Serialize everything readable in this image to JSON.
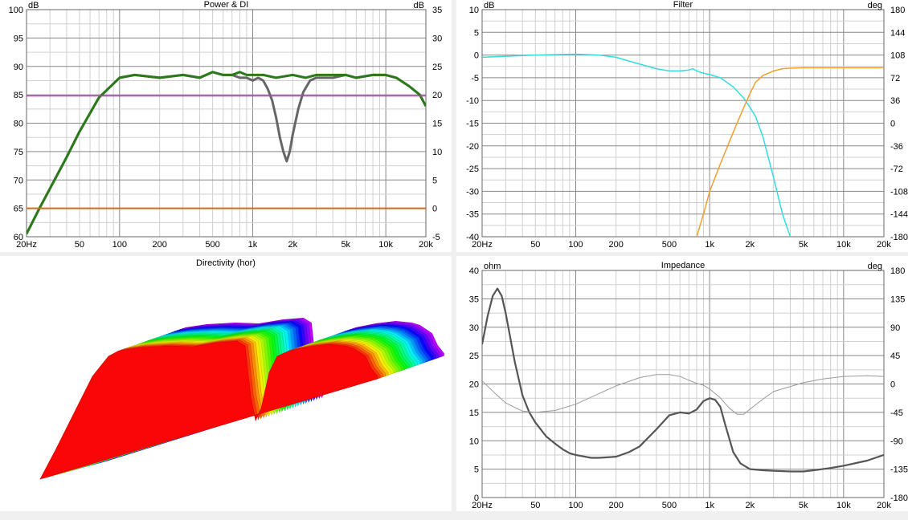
{
  "chart_data": [
    {
      "type": "line",
      "title": "Power & DI",
      "y_unit_left": "dB",
      "y_unit_right": "dB",
      "ylim_left": [
        60,
        100
      ],
      "ylim_right": [
        -5,
        35
      ],
      "xscale": "log",
      "xlim": [
        20,
        20000
      ],
      "x_ticks": [
        "20Hz",
        "50",
        "100",
        "200",
        "500",
        "1k",
        "2k",
        "5k",
        "10k",
        "20k"
      ],
      "y_ticks_left": [
        "60",
        "65",
        "70",
        "75",
        "80",
        "85",
        "90",
        "95",
        "100"
      ],
      "y_ticks_right": [
        "-5",
        "0",
        "5",
        "10",
        "15",
        "20",
        "25",
        "30",
        "35"
      ],
      "grid": true,
      "series": [
        {
          "color": "#666666",
          "x": [
            20,
            25,
            30,
            40,
            50,
            70,
            100,
            130,
            200,
            300,
            400,
            500,
            600,
            700,
            800,
            900,
            1000,
            1100,
            1200,
            1300,
            1400,
            1500,
            1600,
            1700,
            1800,
            1900,
            2000,
            2200,
            2400,
            2700,
            3000,
            3500,
            4000,
            5000,
            6000,
            8000,
            10000,
            12000,
            15000,
            18000,
            20000
          ],
          "y": [
            60.5,
            65,
            68.5,
            74,
            78.5,
            84.5,
            88,
            88.5,
            88,
            88.5,
            88,
            89,
            88.5,
            88.5,
            88,
            88,
            87.5,
            88,
            87.5,
            86,
            84,
            81,
            77.5,
            75,
            73.3,
            75,
            78,
            82.5,
            85.5,
            87.5,
            88,
            88,
            88,
            88.5,
            88,
            88.5,
            88.5,
            88,
            86.5,
            85,
            83
          ]
        },
        {
          "color": "#2a7a1a",
          "x": [
            20,
            25,
            30,
            40,
            50,
            70,
            100,
            130,
            200,
            300,
            400,
            500,
            600,
            700,
            800,
            900,
            1000,
            1200,
            1500,
            2000,
            2500,
            3000,
            4000,
            5000,
            6000,
            8000,
            10000,
            12000,
            15000,
            18000,
            20000
          ],
          "y": [
            60.5,
            65,
            68.5,
            74,
            78.5,
            84.5,
            88,
            88.5,
            88,
            88.5,
            88,
            89,
            88.5,
            88.5,
            89,
            88.5,
            88.5,
            88.5,
            88,
            88.5,
            88,
            88.5,
            88.5,
            88.5,
            88,
            88.5,
            88.5,
            88,
            86.5,
            85,
            83
          ]
        },
        {
          "color": "#cc33cc",
          "axis": "left",
          "x": [
            20,
            20000
          ],
          "y": [
            84.8,
            84.8
          ]
        },
        {
          "color": "#d2691e",
          "axis": "right",
          "x": [
            20,
            20000
          ],
          "y": [
            0,
            0
          ]
        }
      ]
    },
    {
      "type": "line",
      "title": "Filter",
      "y_unit_left": "dB",
      "y_unit_right": "deg",
      "ylim_left": [
        -40,
        10
      ],
      "ylim_right": [
        -180,
        180
      ],
      "xscale": "log",
      "xlim": [
        20,
        20000
      ],
      "x_ticks": [
        "20Hz",
        "50",
        "100",
        "200",
        "500",
        "1k",
        "2k",
        "5k",
        "10k",
        "20k"
      ],
      "y_ticks_left": [
        "-40",
        "-35",
        "-30",
        "-25",
        "-20",
        "-15",
        "-10",
        "-5",
        "0",
        "5",
        "10"
      ],
      "y_ticks_right": [
        "-180",
        "-144",
        "-108",
        "-72",
        "-36",
        "0",
        "36",
        "72",
        "108",
        "144",
        "180"
      ],
      "grid": true,
      "series": [
        {
          "color": "#33dddd",
          "x": [
            20,
            50,
            100,
            150,
            200,
            300,
            400,
            500,
            600,
            700,
            750,
            800,
            900,
            1000,
            1200,
            1500,
            1800,
            2000,
            2200,
            2500,
            3000,
            3500,
            4000,
            4300
          ],
          "y": [
            -0.5,
            0,
            0.2,
            0,
            -0.5,
            -2,
            -3,
            -3.5,
            -3.5,
            -3.3,
            -3,
            -3.5,
            -4,
            -4.3,
            -5,
            -7,
            -9.5,
            -11.5,
            -13.5,
            -18,
            -27,
            -35,
            -40,
            -42
          ]
        },
        {
          "color": "#f0a030",
          "x": [
            800,
            900,
            1000,
            1200,
            1500,
            1800,
            2000,
            2200,
            2500,
            3000,
            3500,
            4000,
            5000,
            7000,
            10000,
            20000
          ],
          "y": [
            -40,
            -35,
            -30,
            -24,
            -17,
            -11.5,
            -8.5,
            -6,
            -4.5,
            -3.5,
            -3,
            -2.9,
            -2.8,
            -2.8,
            -2.8,
            -2.8
          ]
        }
      ]
    },
    {
      "type": "area",
      "title": "Directivity (hor)"
    },
    {
      "type": "line",
      "title": "Impedance",
      "y_unit_left": "ohm",
      "y_unit_right": "deg",
      "ylim_left": [
        0,
        40
      ],
      "ylim_right": [
        -180,
        180
      ],
      "xscale": "log",
      "xlim": [
        20,
        20000
      ],
      "x_ticks": [
        "20Hz",
        "50",
        "100",
        "200",
        "500",
        "1k",
        "2k",
        "5k",
        "10k",
        "20k"
      ],
      "y_ticks_left": [
        "0",
        "5",
        "10",
        "15",
        "20",
        "25",
        "30",
        "35",
        "40"
      ],
      "y_ticks_right": [
        "-180",
        "-135",
        "-90",
        "-45",
        "0",
        "45",
        "90",
        "135",
        "180"
      ],
      "grid": true,
      "series": [
        {
          "color": "#555555",
          "name": "magnitude",
          "x": [
            20,
            22,
            24,
            26,
            28,
            30,
            35,
            40,
            45,
            50,
            60,
            70,
            80,
            90,
            100,
            130,
            150,
            200,
            250,
            300,
            400,
            500,
            600,
            700,
            800,
            900,
            1000,
            1100,
            1200,
            1300,
            1500,
            1700,
            2000,
            2500,
            3000,
            4000,
            5000,
            6000,
            8000,
            10000,
            15000,
            20000
          ],
          "y": [
            27,
            32,
            35.5,
            36.8,
            35.5,
            32.5,
            24,
            18,
            15,
            13.2,
            10.8,
            9.5,
            8.5,
            7.8,
            7.5,
            7,
            7,
            7.2,
            8,
            9,
            12,
            14.5,
            15,
            14.8,
            15.5,
            17,
            17.5,
            17.2,
            16,
            13,
            8,
            6,
            5,
            4.8,
            4.7,
            4.6,
            4.6,
            4.8,
            5.2,
            5.6,
            6.5,
            7.5
          ]
        },
        {
          "color": "#9a9a9a",
          "name": "phase",
          "axis": "right",
          "x": [
            20,
            25,
            30,
            40,
            50,
            70,
            100,
            150,
            200,
            300,
            400,
            500,
            600,
            700,
            800,
            900,
            1000,
            1200,
            1400,
            1600,
            1800,
            2000,
            2500,
            3000,
            5000,
            7000,
            10000,
            15000,
            20000
          ],
          "y": [
            5,
            -15,
            -30,
            -43,
            -45,
            -42,
            -32,
            -15,
            -3,
            10,
            15,
            15,
            12,
            6,
            1,
            -2,
            -8,
            -22,
            -38,
            -48,
            -48,
            -40,
            -24,
            -12,
            2,
            8,
            12,
            13,
            12
          ]
        }
      ]
    }
  ]
}
